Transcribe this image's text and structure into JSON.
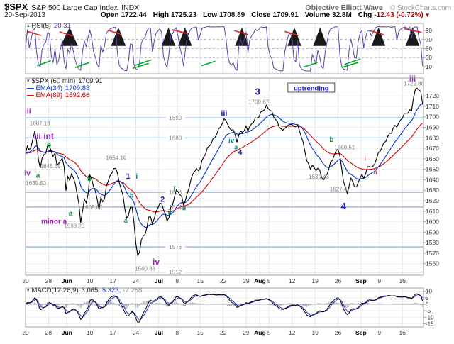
{
  "header": {
    "symbol": "$SPX",
    "name": "S&P 500 Large Cap Index",
    "exchange": "INDX",
    "brand": "Objective Elliott Wave",
    "copyright": "© StockCharts.com",
    "date": "20-Sep-2013",
    "quote": [
      {
        "label": "Open",
        "value": "1722.44"
      },
      {
        "label": "High",
        "value": "1725.23"
      },
      {
        "label": "Low",
        "value": "1708.89"
      },
      {
        "label": "Close",
        "value": "1709.91"
      },
      {
        "label": "Volume",
        "value": "32.8M"
      },
      {
        "label": "Chg",
        "value": "-12.43 (-0.72%)",
        "dir": "▼"
      }
    ]
  },
  "panels": {
    "rsi": {
      "label": "RSI(5)",
      "value": "20.31",
      "icon": "▴"
    },
    "main": {
      "icon": "▾",
      "spx_label": "$SPX (60 min)",
      "spx_value": "1709.91",
      "ema34_label": "EMA(34)",
      "ema34_value": "1709.88",
      "ema89_label": "EMA(89)",
      "ema89_value": "1692.66"
    },
    "macd": {
      "icon": "▾",
      "label": "MACD(12,26,9)",
      "v1": "3.065,",
      "v2": "5.323,",
      "v3": "-2.258"
    }
  },
  "colors": {
    "price": "#000000",
    "ema34": "#0033cc",
    "ema89": "#cc0000",
    "rsi": "#5544aa",
    "level": "#8fb2d9",
    "hist": "#b6b6c6",
    "signal": "#2233cc",
    "purple": "#9922bb",
    "blue": "#1a1ab8",
    "teal": "#00858a",
    "green": "#009933",
    "rose": "#cc6680",
    "green2": "#00aa22",
    "red2": "#dd2222",
    "neg": "#b00000"
  },
  "chart_data": {
    "type": "line",
    "symbol": "$SPX",
    "timeframe": "60 min",
    "title": "S&P 500 Large Cap Index, 60 min bars, 20-May-2013 to 20-Sep-2013",
    "x_unit": "trading days from 20-May-2013",
    "main_ylim": [
      1549,
      1737
    ],
    "rsi_ylim": [
      0,
      100
    ],
    "macd_ylim": [
      -17.5,
      12.5
    ],
    "x_ticks": [
      {
        "label": "20",
        "day": 0
      },
      {
        "label": "28",
        "day": 5
      },
      {
        "label": "Jun",
        "day": 9,
        "month": true
      },
      {
        "label": "10",
        "day": 14
      },
      {
        "label": "17",
        "day": 19
      },
      {
        "label": "24",
        "day": 24
      },
      {
        "label": "Jul",
        "day": 29,
        "month": true
      },
      {
        "label": "8",
        "day": 33
      },
      {
        "label": "15",
        "day": 38
      },
      {
        "label": "22",
        "day": 43
      },
      {
        "label": "29",
        "day": 48
      },
      {
        "label": "Aug",
        "day": 51,
        "month": true
      },
      {
        "label": "5",
        "day": 53
      },
      {
        "label": "12",
        "day": 58
      },
      {
        "label": "19",
        "day": 63
      },
      {
        "label": "26",
        "day": 68
      },
      {
        "label": "Sep",
        "day": 73,
        "month": true
      },
      {
        "label": "9",
        "day": 77
      },
      {
        "label": "16",
        "day": 82
      }
    ],
    "main_yticks": [
      1560,
      1570,
      1580,
      1590,
      1600,
      1610,
      1620,
      1630,
      1640,
      1650,
      1660,
      1670,
      1680,
      1690,
      1700,
      1710,
      1720
    ],
    "rsi_yticks": [
      90,
      70,
      50,
      30,
      10
    ],
    "macd_yticks": [
      10,
      5,
      0,
      -5,
      -10,
      -15
    ],
    "indicators": {
      "rsi_period": 5,
      "rsi_last": 20.31,
      "ema_fast": 34,
      "ema34_last": 1709.88,
      "ema_slow": 89,
      "ema89_last": 1692.66,
      "macd_params": "12,26,9",
      "macd_last": 3.065,
      "signal_last": 5.323,
      "hist_last": -2.258
    },
    "price_points": [
      [
        0,
        1665
      ],
      [
        0.5,
        1672
      ],
      [
        1,
        1667
      ],
      [
        1.5,
        1675
      ],
      [
        2,
        1687.2
      ],
      [
        2.3,
        1680
      ],
      [
        2.6,
        1670
      ],
      [
        3,
        1648.7
      ],
      [
        3.4,
        1658
      ],
      [
        3.8,
        1663
      ],
      [
        4.4,
        1667
      ],
      [
        5,
        1674
      ],
      [
        5.5,
        1669
      ],
      [
        6,
        1660
      ],
      [
        6.4,
        1665
      ],
      [
        7,
        1650
      ],
      [
        7.4,
        1658
      ],
      [
        8,
        1662
      ],
      [
        8.4,
        1652
      ],
      [
        8.8,
        1631
      ],
      [
        9.2,
        1644
      ],
      [
        9.6,
        1638
      ],
      [
        10,
        1646
      ],
      [
        10.5,
        1640
      ],
      [
        11,
        1631
      ],
      [
        11.5,
        1622
      ],
      [
        12,
        1598.2
      ],
      [
        12.4,
        1612
      ],
      [
        12.8,
        1622
      ],
      [
        13.2,
        1618
      ],
      [
        13.6,
        1628
      ],
      [
        14,
        1644
      ],
      [
        14.4,
        1640
      ],
      [
        15,
        1631
      ],
      [
        15.5,
        1622
      ],
      [
        16,
        1612
      ],
      [
        16.4,
        1622
      ],
      [
        17,
        1618
      ],
      [
        17.5,
        1632
      ],
      [
        18,
        1640
      ],
      [
        18.5,
        1647
      ],
      [
        19,
        1644
      ],
      [
        19.3,
        1654.2
      ],
      [
        19.7,
        1650
      ],
      [
        20,
        1644
      ],
      [
        20.4,
        1637
      ],
      [
        21,
        1628
      ],
      [
        21.4,
        1620
      ],
      [
        21.8,
        1608
      ],
      [
        22.2,
        1600
      ],
      [
        22.6,
        1612
      ],
      [
        23,
        1620
      ],
      [
        23.4,
        1608
      ],
      [
        23.8,
        1588
      ],
      [
        24.2,
        1573
      ],
      [
        24.6,
        1560.3
      ],
      [
        25,
        1578
      ],
      [
        25.4,
        1588
      ],
      [
        25.8,
        1582
      ],
      [
        26.2,
        1592
      ],
      [
        26.6,
        1600
      ],
      [
        27,
        1608
      ],
      [
        27.4,
        1603
      ],
      [
        27.8,
        1597
      ],
      [
        28.2,
        1607
      ],
      [
        28.6,
        1613
      ],
      [
        29,
        1614
      ],
      [
        29.5,
        1618
      ],
      [
        30,
        1612
      ],
      [
        30.5,
        1604
      ],
      [
        31,
        1600
      ],
      [
        31.5,
        1612
      ],
      [
        32,
        1618
      ],
      [
        32.5,
        1626
      ],
      [
        33,
        1632
      ],
      [
        33.5,
        1626
      ],
      [
        34,
        1622
      ],
      [
        34.5,
        1615
      ],
      [
        35,
        1622
      ],
      [
        35.5,
        1632
      ],
      [
        36,
        1640
      ],
      [
        36.5,
        1647
      ],
      [
        37,
        1652
      ],
      [
        37.5,
        1648
      ],
      [
        38,
        1652
      ],
      [
        38.5,
        1658
      ],
      [
        39,
        1663
      ],
      [
        39.5,
        1668
      ],
      [
        40,
        1672
      ],
      [
        40.5,
        1676
      ],
      [
        41,
        1680
      ],
      [
        41.5,
        1684
      ],
      [
        42,
        1688
      ],
      [
        42.5,
        1692
      ],
      [
        43,
        1695
      ],
      [
        43.5,
        1698
      ],
      [
        44,
        1692
      ],
      [
        44.5,
        1686
      ],
      [
        45,
        1690
      ],
      [
        45.5,
        1684
      ],
      [
        46,
        1678
      ],
      [
        46.5,
        1684
      ],
      [
        47,
        1688
      ],
      [
        47.5,
        1685
      ],
      [
        48,
        1690
      ],
      [
        48.5,
        1686
      ],
      [
        49,
        1691
      ],
      [
        49.5,
        1695
      ],
      [
        50,
        1698
      ],
      [
        50.5,
        1700
      ],
      [
        51,
        1703
      ],
      [
        51.5,
        1706
      ],
      [
        52,
        1708
      ],
      [
        52.5,
        1709.7
      ],
      [
        53,
        1707
      ],
      [
        53.5,
        1704
      ],
      [
        54,
        1700
      ],
      [
        54.5,
        1697
      ],
      [
        55,
        1693
      ],
      [
        55.5,
        1690
      ],
      [
        56,
        1687
      ],
      [
        56.5,
        1692
      ],
      [
        57,
        1689
      ],
      [
        57.5,
        1694
      ],
      [
        58,
        1691
      ],
      [
        58.5,
        1689
      ],
      [
        59,
        1693
      ],
      [
        59.5,
        1688
      ],
      [
        60,
        1683
      ],
      [
        60.5,
        1674
      ],
      [
        61,
        1663
      ],
      [
        61.5,
        1655
      ],
      [
        62,
        1650
      ],
      [
        62.5,
        1655
      ],
      [
        63,
        1646
      ],
      [
        63.5,
        1652
      ],
      [
        64,
        1648
      ],
      [
        64.5,
        1643
      ],
      [
        65,
        1639.4
      ],
      [
        65.5,
        1646
      ],
      [
        66,
        1651
      ],
      [
        66.5,
        1657
      ],
      [
        67,
        1661
      ],
      [
        67.5,
        1665
      ],
      [
        68,
        1669.5
      ],
      [
        68.4,
        1662
      ],
      [
        68.8,
        1650
      ],
      [
        69.2,
        1640
      ],
      [
        69.6,
        1633
      ],
      [
        70,
        1627.5
      ],
      [
        70.4,
        1636
      ],
      [
        70.8,
        1641
      ],
      [
        71.2,
        1638
      ],
      [
        71.6,
        1634
      ],
      [
        72,
        1631
      ],
      [
        72.5,
        1638
      ],
      [
        73,
        1645
      ],
      [
        73.5,
        1641
      ],
      [
        74,
        1647
      ],
      [
        74.5,
        1653
      ],
      [
        75,
        1655
      ],
      [
        75.5,
        1651
      ],
      [
        76,
        1656
      ],
      [
        76.5,
        1661
      ],
      [
        77,
        1666
      ],
      [
        77.5,
        1670
      ],
      [
        78,
        1674
      ],
      [
        78.5,
        1679
      ],
      [
        79,
        1683
      ],
      [
        79.5,
        1686
      ],
      [
        80,
        1689
      ],
      [
        80.5,
        1692
      ],
      [
        81,
        1691
      ],
      [
        81.5,
        1695
      ],
      [
        82,
        1699
      ],
      [
        82.5,
        1702
      ],
      [
        83,
        1704
      ],
      [
        83.5,
        1706
      ],
      [
        84,
        1707
      ],
      [
        84.4,
        1719
      ],
      [
        84.8,
        1725
      ],
      [
        85.1,
        1727
      ],
      [
        85.4,
        1729.9
      ],
      [
        85.7,
        1724
      ],
      [
        86,
        1722.4
      ],
      [
        86.3,
        1713
      ],
      [
        86.6,
        1709.9
      ]
    ],
    "annotations": {
      "levels": [
        1699,
        1680,
        1628,
        1614,
        1576,
        1552
      ],
      "level_label_day": 32.6,
      "callout": {
        "text": "uptrending",
        "day": 57.4,
        "price": 1727.5
      },
      "price_labels": [
        [
          "1687.18",
          0.9,
          1694
        ],
        [
          "1648.69",
          3.2,
          1653
        ],
        [
          "1635.53",
          0.05,
          1637
        ],
        [
          "1598.23",
          8.4,
          1596
        ],
        [
          "1608.07",
          12.3,
          1614
        ],
        [
          "1654.19",
          17.5,
          1661
        ],
        [
          "1560.33",
          23.8,
          1555.5
        ],
        [
          "1709.67",
          48.5,
          1714.5
        ],
        [
          "1639.43",
          61.6,
          1643
        ],
        [
          "1627.47",
          66.2,
          1631
        ],
        [
          "1669.51",
          67.2,
          1671
        ],
        [
          "1729.86",
          82.3,
          1732
        ]
      ],
      "elliott": [
        [
          "iii",
          0.5,
          1705,
          "purple",
          11
        ],
        [
          "iii int",
          4.0,
          1681,
          "purple",
          12
        ],
        [
          "iv",
          0.4,
          1646,
          "purple",
          11
        ],
        [
          "a",
          2.7,
          1644,
          "green",
          10
        ],
        [
          "b",
          5.1,
          1673,
          "green",
          10
        ],
        [
          "minor a",
          6.2,
          1600,
          "purple",
          10
        ],
        [
          "a",
          9.8,
          1608,
          "green",
          10
        ],
        [
          "b",
          13.9,
          1641,
          "green",
          10
        ],
        [
          "1",
          22.3,
          1643,
          "blue",
          11
        ],
        [
          "i",
          24.2,
          1643,
          "teal",
          10
        ],
        [
          "a",
          21.8,
          1601,
          "teal",
          9
        ],
        [
          "b",
          23.1,
          1625,
          "teal",
          9
        ],
        [
          "iv",
          28.4,
          1561,
          "purple",
          12
        ],
        [
          "2",
          29.8,
          1621,
          "blue",
          11
        ],
        [
          "ii",
          31.4,
          1609,
          "teal",
          10
        ],
        [
          "i",
          32.4,
          1631,
          "teal",
          10
        ],
        [
          "ii",
          34.5,
          1613,
          "teal",
          10
        ],
        [
          "iii",
          43.2,
          1703,
          "blue",
          11
        ],
        [
          "iv",
          44.8,
          1677,
          "teal",
          10
        ],
        [
          "a",
          45.8,
          1671,
          "teal",
          9
        ],
        [
          "4",
          46.7,
          1666,
          "blue",
          10
        ],
        [
          "3",
          50.5,
          1723,
          "blue",
          13
        ],
        [
          "b",
          66.6,
          1678,
          "green",
          10
        ],
        [
          "4",
          69.2,
          1614,
          "blue",
          13
        ],
        [
          "i",
          73.9,
          1660,
          "rose",
          10
        ],
        [
          "ii",
          76.1,
          1647,
          "rose",
          10
        ],
        [
          "iii",
          84.2,
          1736,
          "purple",
          11
        ]
      ],
      "rsi_red": [
        [
          0.4,
          88,
          3.4,
          79
        ],
        [
          7.4,
          87,
          10.4,
          78
        ],
        [
          17.9,
          91,
          20.9,
          81
        ],
        [
          31.9,
          92,
          35.4,
          83
        ],
        [
          45.4,
          90,
          48.4,
          81
        ],
        [
          56.4,
          88,
          59.4,
          79
        ],
        [
          74.9,
          90,
          77.9,
          81
        ],
        [
          82.4,
          94,
          86.2,
          86
        ]
      ],
      "rsi_green": [
        [
          2.5,
          12,
          5.5,
          23
        ],
        [
          10.8,
          8,
          13.8,
          19
        ],
        [
          23.3,
          6,
          26.8,
          17
        ],
        [
          23.9,
          13,
          27.4,
          25
        ],
        [
          38.3,
          12,
          41.3,
          22
        ],
        [
          60.5,
          9,
          63.5,
          19
        ],
        [
          68.8,
          8,
          72.3,
          19
        ],
        [
          69.4,
          15,
          72.9,
          27
        ]
      ],
      "rsi_fills": [
        [
          7.6,
          9.6,
          11.4
        ],
        [
          18.6,
          20.2,
          21.8
        ],
        [
          29.6,
          31.1,
          32.6
        ],
        [
          33.2,
          34.7,
          36.2
        ],
        [
          45.6,
          47.1,
          48.6
        ],
        [
          57.0,
          58.5,
          60.0
        ],
        [
          62.6,
          64.1,
          65.6
        ],
        [
          75.3,
          76.8,
          78.3
        ],
        [
          82.7,
          84.2,
          85.7
        ]
      ]
    }
  }
}
